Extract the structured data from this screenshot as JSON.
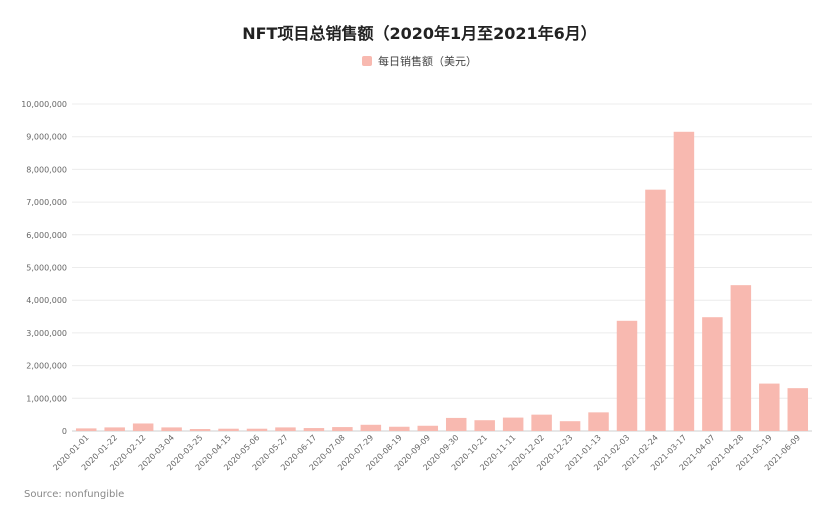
{
  "chart_data": {
    "type": "bar",
    "title": "NFT项目总销售额（2020年1月至2021年6月）",
    "legend": "每日销售额（美元）",
    "source": "Source: nonfungible",
    "bar_color": "#f8b9b0",
    "grid": true,
    "legend_position": "top-center",
    "ylim": [
      0,
      10000000
    ],
    "yticks": [
      0,
      1000000,
      2000000,
      3000000,
      4000000,
      5000000,
      6000000,
      7000000,
      8000000,
      9000000,
      10000000
    ],
    "ytick_labels": [
      "0",
      "1,000,000",
      "2,000,000",
      "3,000,000",
      "4,000,000",
      "5,000,000",
      "6,000,000",
      "7,000,000",
      "8,000,000",
      "9,000,000",
      "10,000,000"
    ],
    "categories": [
      "2020-01-01",
      "2020-01-22",
      "2020-02-12",
      "2020-03-04",
      "2020-03-25",
      "2020-04-15",
      "2020-05-06",
      "2020-05-27",
      "2020-06-17",
      "2020-07-08",
      "2020-07-29",
      "2020-08-19",
      "2020-09-09",
      "2020-09-30",
      "2020-10-21",
      "2020-11-11",
      "2020-12-02",
      "2020-12-23",
      "2021-01-13",
      "2021-02-03",
      "2021-02-24",
      "2021-03-17",
      "2021-04-07",
      "2021-04-28",
      "2021-05-19",
      "2021-06-09"
    ],
    "series": [
      {
        "name": "每日销售额（美元）",
        "values": [
          80000,
          110000,
          230000,
          110000,
          60000,
          70000,
          70000,
          110000,
          90000,
          120000,
          190000,
          130000,
          160000,
          400000,
          330000,
          410000,
          500000,
          300000,
          570000,
          3370000,
          7380000,
          9150000,
          3480000,
          4460000,
          1450000,
          1310000
        ]
      }
    ]
  }
}
